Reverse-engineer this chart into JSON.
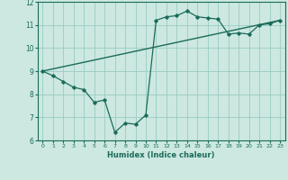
{
  "xlabel": "Humidex (Indice chaleur)",
  "ylabel": "",
  "bg_color": "#cce8e0",
  "grid_color": "#99ccc4",
  "line_color": "#1a6b5a",
  "xlim": [
    -0.5,
    23.5
  ],
  "ylim": [
    6,
    12
  ],
  "yticks": [
    6,
    7,
    8,
    9,
    10,
    11,
    12
  ],
  "xticks": [
    0,
    1,
    2,
    3,
    4,
    5,
    6,
    7,
    8,
    9,
    10,
    11,
    12,
    13,
    14,
    15,
    16,
    17,
    18,
    19,
    20,
    21,
    22,
    23
  ],
  "series1_x": [
    0,
    1,
    2,
    3,
    4,
    5,
    6,
    7,
    8,
    9,
    10,
    11,
    12,
    13,
    14,
    15,
    16,
    17,
    18,
    19,
    20,
    21,
    22,
    23
  ],
  "series1_y": [
    9.0,
    8.8,
    8.55,
    8.3,
    8.2,
    7.65,
    7.75,
    6.35,
    6.75,
    6.7,
    7.1,
    11.2,
    11.35,
    11.4,
    11.6,
    11.35,
    11.3,
    11.25,
    10.6,
    10.65,
    10.6,
    11.0,
    11.05,
    11.2
  ],
  "series2_x": [
    0,
    23
  ],
  "series2_y": [
    9.0,
    11.2
  ]
}
